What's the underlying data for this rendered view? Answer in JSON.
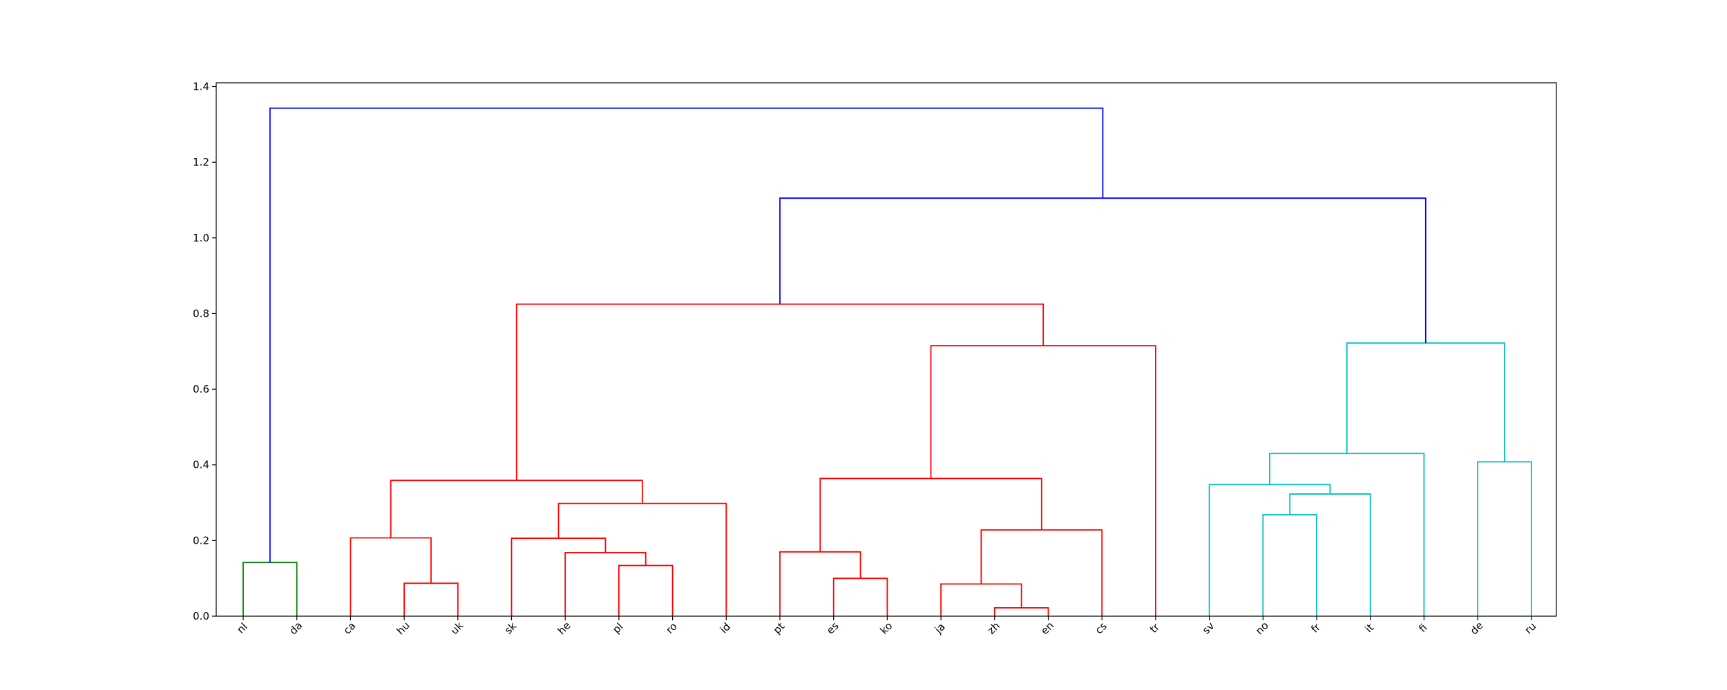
{
  "chart_data": {
    "type": "dendrogram",
    "title": "",
    "xlabel": "",
    "ylabel": "",
    "ylim": [
      0,
      1.41
    ],
    "yticks": [
      0.0,
      0.2,
      0.4,
      0.6,
      0.8,
      1.0,
      1.2,
      1.4
    ],
    "ytick_labels": [
      "0.0",
      "0.2",
      "0.4",
      "0.6",
      "0.8",
      "1.0",
      "1.2",
      "1.4"
    ],
    "leaves": [
      "nl",
      "da",
      "ca",
      "hu",
      "uk",
      "sk",
      "he",
      "pl",
      "ro",
      "id",
      "pt",
      "es",
      "ko",
      "ja",
      "zh",
      "en",
      "cs",
      "tr",
      "sv",
      "no",
      "fr",
      "it",
      "fi",
      "de",
      "ru"
    ],
    "colors": {
      "green": "#008000",
      "red": "#ff0000",
      "cyan": "#00bfbf",
      "blue": "#0000ff",
      "axis": "#000000"
    },
    "merges": [
      {
        "left": "nl",
        "right": "da",
        "height": 0.142,
        "color": "green",
        "id": "C1"
      },
      {
        "left": "hu",
        "right": "uk",
        "height": 0.087,
        "color": "red",
        "id": "C2"
      },
      {
        "left": "ca",
        "right": "C2",
        "height": 0.207,
        "color": "red",
        "id": "C3"
      },
      {
        "left": "pl",
        "right": "ro",
        "height": 0.134,
        "color": "red",
        "id": "C4"
      },
      {
        "left": "he",
        "right": "C4",
        "height": 0.168,
        "color": "red",
        "id": "C5"
      },
      {
        "left": "sk",
        "right": "C5",
        "height": 0.206,
        "color": "red",
        "id": "C6"
      },
      {
        "left": "C6",
        "right": "id",
        "height": 0.298,
        "color": "red",
        "id": "C7"
      },
      {
        "left": "C3",
        "right": "C7",
        "height": 0.359,
        "color": "red",
        "id": "C8"
      },
      {
        "left": "es",
        "right": "ko",
        "height": 0.1,
        "color": "red",
        "id": "C9"
      },
      {
        "left": "pt",
        "right": "C9",
        "height": 0.17,
        "color": "red",
        "id": "C10"
      },
      {
        "left": "zh",
        "right": "en",
        "height": 0.022,
        "color": "red",
        "id": "C11"
      },
      {
        "left": "ja",
        "right": "C11",
        "height": 0.085,
        "color": "red",
        "id": "C12"
      },
      {
        "left": "C12",
        "right": "cs",
        "height": 0.228,
        "color": "red",
        "id": "C13"
      },
      {
        "left": "C10",
        "right": "C13",
        "height": 0.364,
        "color": "red",
        "id": "C14"
      },
      {
        "left": "C14",
        "right": "tr",
        "height": 0.715,
        "color": "red",
        "id": "C15"
      },
      {
        "left": "C8",
        "right": "C15",
        "height": 0.825,
        "color": "red",
        "id": "C16"
      },
      {
        "left": "no",
        "right": "fr",
        "height": 0.268,
        "color": "cyan",
        "id": "C17"
      },
      {
        "left": "C17",
        "right": "it",
        "height": 0.323,
        "color": "cyan",
        "id": "C18"
      },
      {
        "left": "sv",
        "right": "C18",
        "height": 0.348,
        "color": "cyan",
        "id": "C19"
      },
      {
        "left": "C19",
        "right": "fi",
        "height": 0.43,
        "color": "cyan",
        "id": "C20"
      },
      {
        "left": "de",
        "right": "ru",
        "height": 0.408,
        "color": "cyan",
        "id": "C21"
      },
      {
        "left": "C20",
        "right": "C21",
        "height": 0.722,
        "color": "cyan",
        "id": "C22"
      },
      {
        "left": "C16",
        "right": "C22",
        "height": 1.105,
        "color": "blue",
        "id": "C23"
      },
      {
        "left": "C1",
        "right": "C23",
        "height": 1.343,
        "color": "blue",
        "id": "C24"
      }
    ]
  }
}
